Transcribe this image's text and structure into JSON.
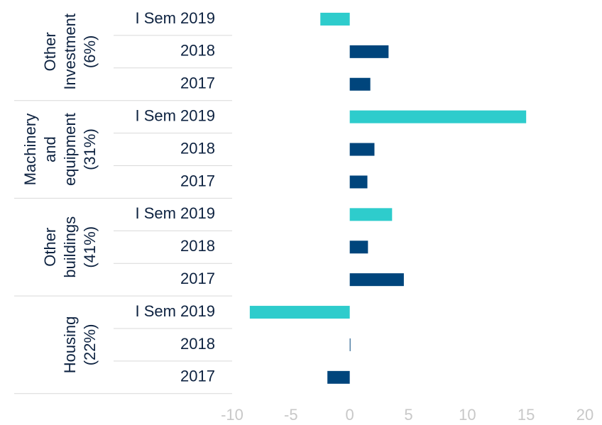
{
  "chart_data": {
    "type": "bar",
    "orientation": "horizontal",
    "groups": [
      {
        "name": [
          "Other",
          "Investment",
          "(6%)"
        ],
        "categories": [
          "I Sem 2019",
          "2018",
          "2017"
        ],
        "values": [
          -2.5,
          3.3,
          1.75
        ],
        "colors": [
          "#2ecccc",
          "#00457c",
          "#00457c"
        ]
      },
      {
        "name": [
          "Machinery",
          "and",
          "equipment",
          "(31%)"
        ],
        "categories": [
          "I Sem 2019",
          "2018",
          "2017"
        ],
        "values": [
          15.0,
          2.1,
          1.5
        ],
        "colors": [
          "#2ecccc",
          "#00457c",
          "#00457c"
        ]
      },
      {
        "name": [
          "Other",
          "buildings",
          "(41%)"
        ],
        "categories": [
          "I Sem 2019",
          "2018",
          "2017"
        ],
        "values": [
          3.6,
          1.55,
          4.6
        ],
        "colors": [
          "#2ecccc",
          "#00457c",
          "#00457c"
        ]
      },
      {
        "name": [
          "Housing",
          "(22%)"
        ],
        "categories": [
          "I Sem 2019",
          "2018",
          "2017"
        ],
        "values": [
          -8.5,
          0.05,
          -1.9
        ],
        "colors": [
          "#2ecccc",
          "#00457c",
          "#00457c"
        ]
      }
    ],
    "xlim": [
      -10,
      20
    ],
    "xticks": [
      -10,
      -5,
      0,
      5,
      10,
      15,
      20
    ]
  }
}
